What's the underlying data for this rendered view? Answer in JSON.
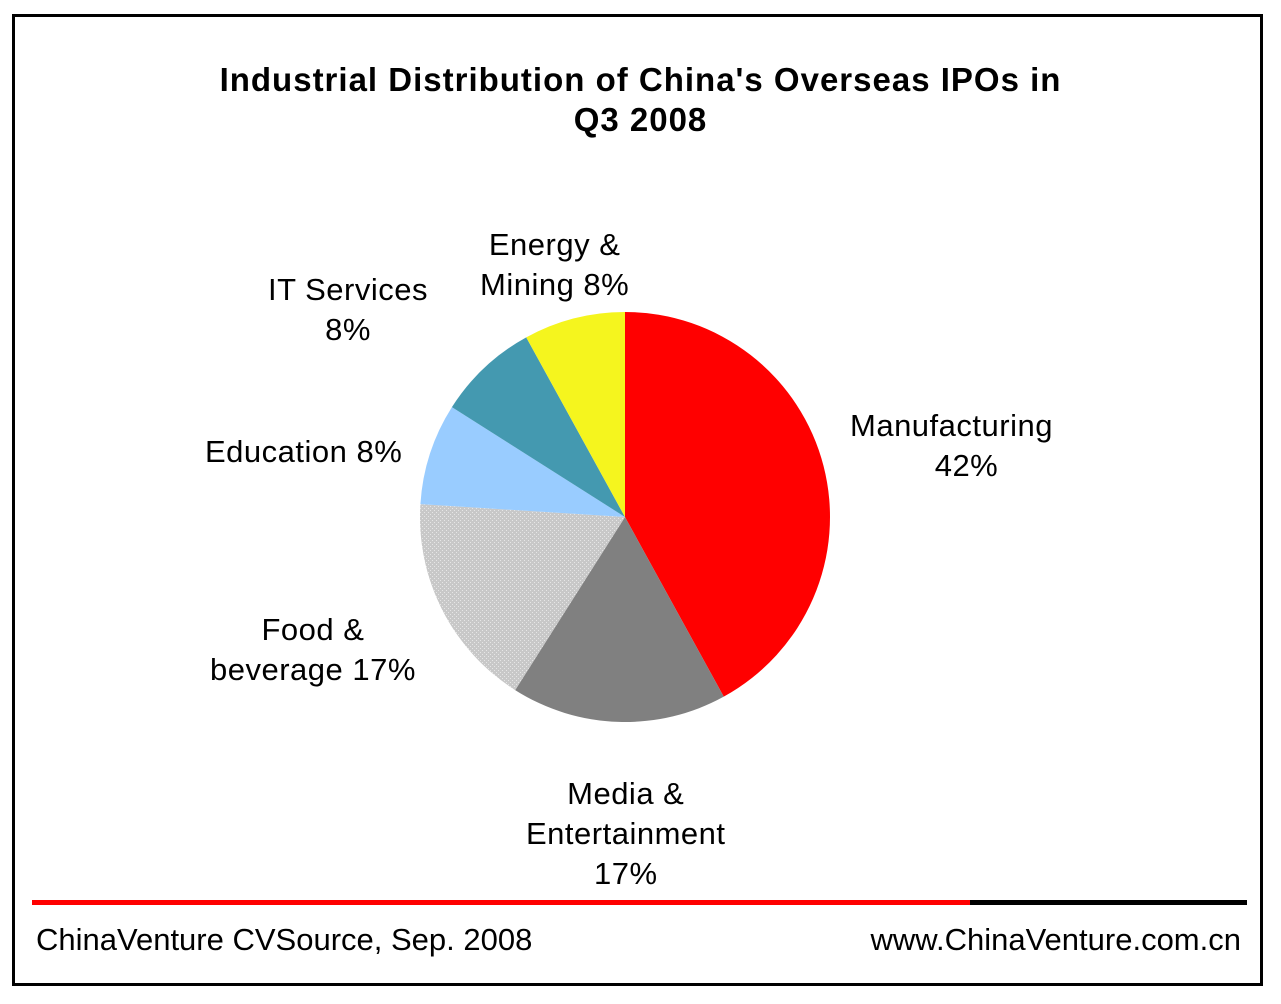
{
  "chart_data": {
    "type": "pie",
    "title_lines": [
      "Industrial Distribution of China's Overseas  IPOs in",
      "Q3 2008"
    ],
    "slices": [
      {
        "name": "Manufacturing",
        "value": 42,
        "label_lines": [
          "Manufacturing",
          "42%"
        ],
        "color": "#ff0000"
      },
      {
        "name": "Media & Entertainment",
        "value": 17,
        "label_lines": [
          "Media &",
          "Entertainment",
          "17%"
        ],
        "color": "#808080"
      },
      {
        "name": "Food & beverage",
        "value": 17,
        "label_lines": [
          "Food &",
          "beverage 17%"
        ],
        "color": "#c0c0c0"
      },
      {
        "name": "Education",
        "value": 8,
        "label_lines": [
          "Education 8%"
        ],
        "color": "#99ccff"
      },
      {
        "name": "IT Services",
        "value": 8,
        "label_lines": [
          "IT Services",
          "8%"
        ],
        "color": "#4499b0"
      },
      {
        "name": "Energy & Mining",
        "value": 8,
        "label_lines": [
          "Energy &",
          "Mining 8%"
        ],
        "color": "#f5f51e"
      }
    ]
  },
  "footer": {
    "source": "ChinaVenture CVSource, Sep. 2008",
    "website": "www.ChinaVenture.com.cn",
    "rule_colors": [
      "#ff0000",
      "#000000"
    ]
  }
}
